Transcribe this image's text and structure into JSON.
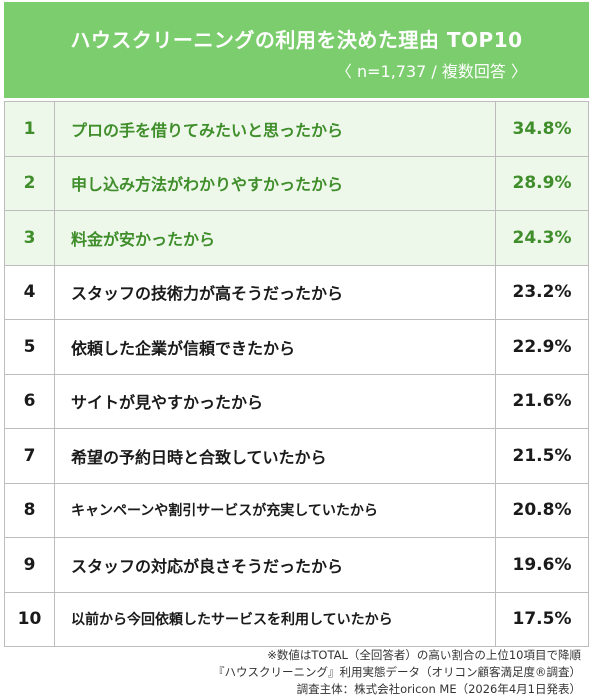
{
  "header": {
    "title": "ハウスクリーニングの利用を決めた理由 TOP10",
    "subtitle": "〈 n=1,737 / 複数回答 〉"
  },
  "colors": {
    "header_bg": "#7ccd6e",
    "top3_text": "#3f8e2b",
    "top3_row_bg": "#eef8ea"
  },
  "chart_data": {
    "type": "table",
    "title": "ハウスクリーニングの利用を決めた理由 TOP10",
    "subtitle": "〈 n=1,737 / 複数回答 〉",
    "rows": [
      {
        "rank": "1",
        "reason": "プロの手を借りてみたいと思ったから",
        "value": "34.8%"
      },
      {
        "rank": "2",
        "reason": "申し込み方法がわかりやすかったから",
        "value": "28.9%"
      },
      {
        "rank": "3",
        "reason": "料金が安かったから",
        "value": "24.3%"
      },
      {
        "rank": "4",
        "reason": "スタッフの技術力が高そうだったから",
        "value": "23.2%"
      },
      {
        "rank": "5",
        "reason": "依頼した企業が信頼できたから",
        "value": "22.9%"
      },
      {
        "rank": "6",
        "reason": "サイトが見やすかったから",
        "value": "21.6%"
      },
      {
        "rank": "7",
        "reason": "希望の予約日時と合致していたから",
        "value": "21.5%"
      },
      {
        "rank": "8",
        "reason": "キャンペーンや割引サービスが充実していたから",
        "value": "20.8%"
      },
      {
        "rank": "9",
        "reason": "スタッフの対応が良さそうだったから",
        "value": "19.6%"
      },
      {
        "rank": "10",
        "reason": "以前から今回依頼したサービスを利用していたから",
        "value": "17.5%"
      }
    ]
  },
  "footnotes": [
    "※数値はTOTAL（全回答者）の高い割合の上位10項目で降順",
    "『ハウスクリーニング』利用実態データ（オリコン顧客満足度®調査）",
    "調査主体：株式会社oricon ME（2026年4月1日発表）"
  ]
}
